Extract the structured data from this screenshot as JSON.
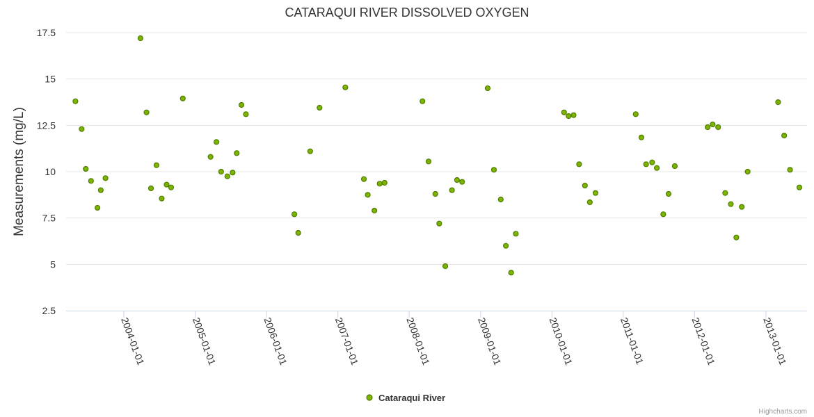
{
  "chart_data": {
    "type": "scatter",
    "title": "CATARAQUI RIVER DISSOLVED OXYGEN",
    "xlabel": "",
    "ylabel": "Measurements (mg/L)",
    "ylim": [
      2.5,
      17.5
    ],
    "y_ticks": [
      "2.5",
      "5",
      "7.5",
      "10",
      "12.5",
      "15",
      "17.5"
    ],
    "x_axis_type": "datetime",
    "x_ticks": [
      "2004-01-01",
      "2005-01-01",
      "2006-01-01",
      "2007-01-01",
      "2008-01-01",
      "2009-01-01",
      "2010-01-01",
      "2011-01-01",
      "2012-01-01",
      "2013-01-01"
    ],
    "grid": true,
    "legend": "bottom-center",
    "credits": "Highcharts.com",
    "colors": {
      "marker_fill": "#7cb400",
      "marker_stroke": "#4f7d00",
      "grid": "#e6e6e6",
      "axis": "#ccd6eb",
      "text": "#333333"
    },
    "series": [
      {
        "name": "Cataraqui River",
        "points": [
          [
            "2003-04-28",
            13.8
          ],
          [
            "2003-05-30",
            12.3
          ],
          [
            "2003-06-20",
            10.15
          ],
          [
            "2003-07-17",
            9.5
          ],
          [
            "2003-08-19",
            8.05
          ],
          [
            "2003-09-05",
            9.0
          ],
          [
            "2003-09-29",
            9.65
          ],
          [
            "2004-03-26",
            17.2
          ],
          [
            "2004-04-26",
            13.2
          ],
          [
            "2004-05-19",
            9.1
          ],
          [
            "2004-06-16",
            10.35
          ],
          [
            "2004-07-13",
            8.55
          ],
          [
            "2004-08-07",
            9.3
          ],
          [
            "2004-08-30",
            9.15
          ],
          [
            "2004-10-29",
            13.95
          ],
          [
            "2005-03-20",
            10.8
          ],
          [
            "2005-04-19",
            11.6
          ],
          [
            "2005-05-13",
            10.0
          ],
          [
            "2005-06-14",
            9.75
          ],
          [
            "2005-07-11",
            9.95
          ],
          [
            "2005-08-01",
            11.0
          ],
          [
            "2005-08-25",
            13.6
          ],
          [
            "2005-09-17",
            13.1
          ],
          [
            "2006-05-23",
            7.7
          ],
          [
            "2006-06-12",
            6.7
          ],
          [
            "2006-08-12",
            11.1
          ],
          [
            "2006-09-29",
            13.45
          ],
          [
            "2007-02-08",
            14.55
          ],
          [
            "2007-05-14",
            9.6
          ],
          [
            "2007-06-03",
            8.75
          ],
          [
            "2007-07-07",
            7.9
          ],
          [
            "2007-08-03",
            9.35
          ],
          [
            "2007-08-28",
            9.4
          ],
          [
            "2008-03-09",
            13.8
          ],
          [
            "2008-04-09",
            10.55
          ],
          [
            "2008-05-14",
            8.8
          ],
          [
            "2008-06-03",
            7.2
          ],
          [
            "2008-07-04",
            4.9
          ],
          [
            "2008-08-07",
            9.0
          ],
          [
            "2008-09-02",
            9.55
          ],
          [
            "2008-09-28",
            9.45
          ],
          [
            "2009-02-06",
            14.5
          ],
          [
            "2009-03-10",
            10.1
          ],
          [
            "2009-04-14",
            8.5
          ],
          [
            "2009-05-10",
            6.0
          ],
          [
            "2009-06-06",
            4.55
          ],
          [
            "2009-06-30",
            6.65
          ],
          [
            "2010-03-04",
            13.2
          ],
          [
            "2010-03-27",
            13.0
          ],
          [
            "2010-04-22",
            13.05
          ],
          [
            "2010-05-20",
            10.4
          ],
          [
            "2010-06-19",
            9.25
          ],
          [
            "2010-07-14",
            8.35
          ],
          [
            "2010-08-12",
            8.85
          ],
          [
            "2011-03-06",
            13.1
          ],
          [
            "2011-04-04",
            11.85
          ],
          [
            "2011-04-28",
            10.4
          ],
          [
            "2011-05-29",
            10.5
          ],
          [
            "2011-06-22",
            10.2
          ],
          [
            "2011-07-25",
            7.7
          ],
          [
            "2011-08-21",
            8.8
          ],
          [
            "2011-09-22",
            10.3
          ],
          [
            "2012-03-08",
            12.4
          ],
          [
            "2012-04-03",
            12.55
          ],
          [
            "2012-05-01",
            12.4
          ],
          [
            "2012-06-06",
            8.85
          ],
          [
            "2012-07-05",
            8.25
          ],
          [
            "2012-08-02",
            6.45
          ],
          [
            "2012-08-30",
            8.1
          ],
          [
            "2012-09-29",
            10.0
          ],
          [
            "2013-03-04",
            13.75
          ],
          [
            "2013-04-04",
            11.95
          ],
          [
            "2013-05-04",
            10.1
          ],
          [
            "2013-06-21",
            9.15
          ]
        ]
      }
    ]
  }
}
